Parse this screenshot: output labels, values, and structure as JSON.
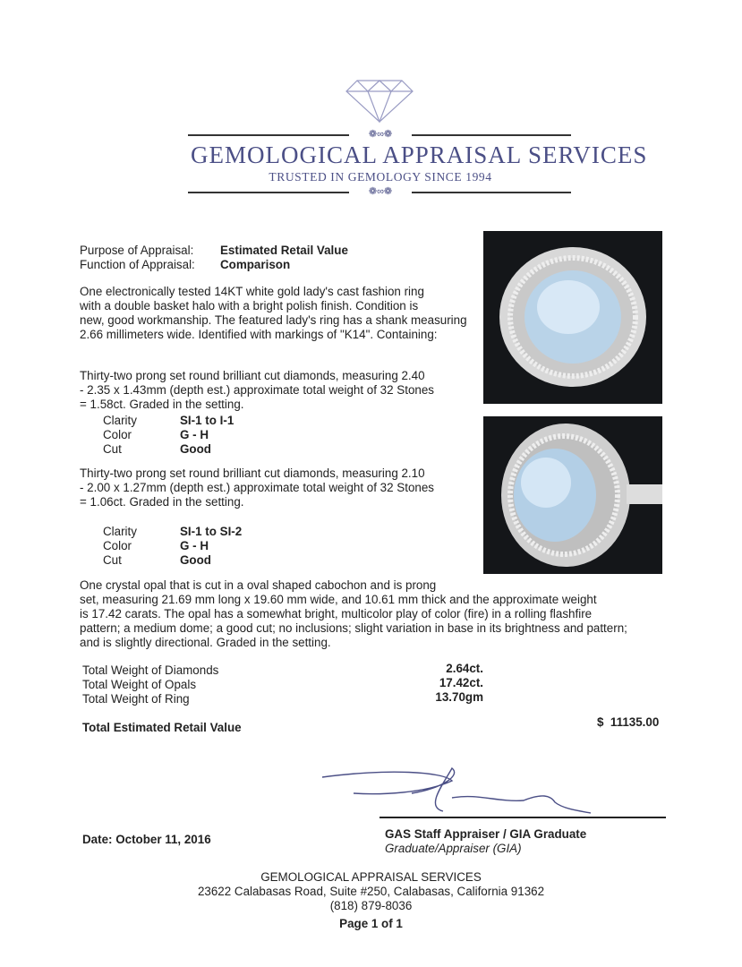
{
  "header": {
    "company": "GEMOLOGICAL APPRAISAL SERVICES",
    "tagline": "TRUSTED IN GEMOLOGY SINCE 1994"
  },
  "purpose": {
    "label": "Purpose of Appraisal:",
    "value": "Estimated Retail Value"
  },
  "function": {
    "label": "Function of Appraisal:",
    "value": "Comparison"
  },
  "description": [
    "One electronically tested 14KT white gold lady's cast fashion ring",
    "with a double basket halo with a bright polish finish. Condition is",
    "new, good workmanship. The featured lady's ring has a shank measuring",
    "2.66 millimeters wide. Identified with markings of \"K14\".  Containing:"
  ],
  "diamonds1": {
    "text": [
      "Thirty-two prong set round brilliant cut diamonds, measuring 2.40",
      "- 2.35 x 1.43mm (depth est.) approximate total weight of 32 Stones",
      "= 1.58ct. Graded in the setting."
    ],
    "grades": [
      {
        "label": "Clarity",
        "value": "SI-1 to I-1"
      },
      {
        "label": "Color",
        "value": "G - H"
      },
      {
        "label": "Cut",
        "value": "Good"
      }
    ]
  },
  "diamonds2": {
    "text": [
      "Thirty-two prong set round brilliant cut diamonds, measuring 2.10",
      "- 2.00 x 1.27mm (depth est.) approximate total weight of 32 Stones",
      "= 1.06ct. Graded in the setting."
    ],
    "grades": [
      {
        "label": "Clarity",
        "value": "SI-1 to SI-2"
      },
      {
        "label": "Color",
        "value": "G - H"
      },
      {
        "label": "Cut",
        "value": "Good"
      }
    ]
  },
  "opal": [
    "One crystal opal that is cut in a oval shaped cabochon and is prong",
    "set, measuring 21.69 mm long x 19.60 mm wide, and 10.61 mm thick and the approximate weight",
    "is 17.42 carats. The opal has a somewhat bright, multicolor play of color (fire) in a rolling flashfire",
    "pattern; a medium dome; a good cut; no inclusions; slight variation in base in its brightness and pattern;",
    "and is slightly directional. Graded in the setting."
  ],
  "totals": [
    {
      "label": "Total Weight of Diamonds",
      "value": "2.64ct."
    },
    {
      "label": "Total Weight of Opals",
      "value": "17.42ct."
    },
    {
      "label": "Total Weight of Ring",
      "value": "13.70gm"
    }
  ],
  "retail": {
    "label": "Total Estimated Retail Value",
    "currency": "$",
    "value": "11135.00"
  },
  "date": "Date: October 11, 2016",
  "signer": {
    "title": "GAS Staff Appraiser / GIA Graduate",
    "subtitle": "Graduate/Appraiser (GIA)"
  },
  "footer": {
    "company": "GEMOLOGICAL APPRAISAL SERVICES",
    "address": "23622 Calabasas Road, Suite #250, Calabasas, California 91362",
    "phone": "(818) 879-8036",
    "page": "Page 1 of 1"
  },
  "colors": {
    "brand": "#4b4f86"
  }
}
